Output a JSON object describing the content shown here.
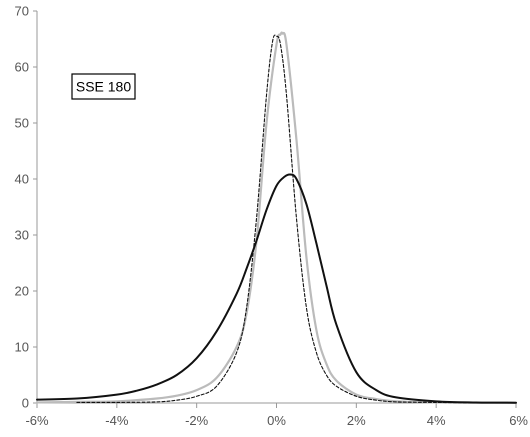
{
  "chart_data": {
    "type": "line",
    "title": "",
    "xlabel": "",
    "ylabel": "",
    "xlim": [
      -0.06,
      0.06
    ],
    "ylim": [
      0,
      70
    ],
    "x_ticks": [
      -0.06,
      -0.04,
      -0.02,
      0,
      0.02,
      0.04,
      0.06
    ],
    "x_tick_labels": [
      "-6%",
      "-4%",
      "-2%",
      "0%",
      "2%",
      "4%",
      "6%"
    ],
    "y_ticks": [
      0,
      10,
      20,
      30,
      40,
      50,
      60,
      70
    ],
    "y_tick_labels": [
      "0",
      "10",
      "20",
      "30",
      "40",
      "50",
      "60",
      "70"
    ],
    "grid": false,
    "legend": "none",
    "annotation": "SSE 180",
    "series": [
      {
        "style": "solid",
        "color": "#111111",
        "x": [
          -0.06,
          -0.05,
          -0.04,
          -0.035,
          -0.03,
          -0.025,
          -0.02,
          -0.015,
          -0.01,
          -0.0075,
          -0.005,
          -0.0025,
          0,
          0.002,
          0.0035,
          0.005,
          0.0075,
          0.01,
          0.0125,
          0.015,
          0.02,
          0.025,
          0.03,
          0.04,
          0.05,
          0.06
        ],
        "y": [
          0.6,
          0.8,
          1.5,
          2.2,
          3.3,
          5.0,
          8.0,
          12.8,
          19.5,
          24.0,
          29.0,
          34.5,
          38.8,
          40.4,
          40.8,
          40.0,
          35.5,
          28.5,
          21.0,
          14.0,
          5.5,
          2.3,
          1.0,
          0.3,
          0.1,
          0.05
        ]
      },
      {
        "style": "solid",
        "color": "#bbbbbb",
        "x": [
          -0.06,
          -0.05,
          -0.04,
          -0.03,
          -0.025,
          -0.02,
          -0.015,
          -0.01,
          -0.0075,
          -0.005,
          -0.0025,
          0,
          0.001,
          0.0015,
          0.0025,
          0.005,
          0.0075,
          0.01,
          0.0125,
          0.015,
          0.02,
          0.025,
          0.03,
          0.04,
          0.05,
          0.06
        ],
        "y": [
          0.1,
          0.2,
          0.3,
          0.8,
          1.3,
          2.3,
          4.5,
          10.0,
          16.0,
          29.0,
          50.0,
          64.0,
          65.8,
          66.0,
          64.0,
          47.0,
          26.0,
          13.0,
          7.0,
          4.0,
          1.5,
          0.7,
          0.3,
          0.1,
          0.05,
          0.02
        ]
      },
      {
        "style": "dashed",
        "color": "#111111",
        "x": [
          -0.05,
          -0.04,
          -0.03,
          -0.025,
          -0.02,
          -0.015,
          -0.01,
          -0.0075,
          -0.005,
          -0.0025,
          -0.001,
          0,
          0.001,
          0.0025,
          0.005,
          0.0075,
          0.01,
          0.0125,
          0.015,
          0.02,
          0.025,
          0.03,
          0.04,
          0.05
        ],
        "y": [
          0.1,
          0.1,
          0.2,
          0.5,
          1.2,
          3.0,
          9.0,
          17.0,
          33.0,
          55.0,
          64.5,
          65.5,
          64.0,
          55.0,
          33.0,
          17.0,
          9.0,
          5.0,
          3.0,
          1.2,
          0.5,
          0.2,
          0.1,
          0.05
        ]
      }
    ]
  }
}
